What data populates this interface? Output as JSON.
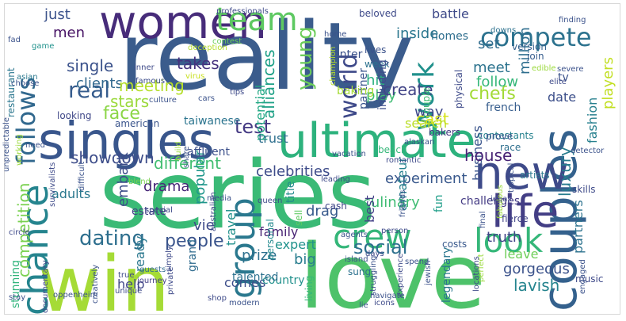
{
  "word_cloud": {
    "background": "#ffffff",
    "words": [
      {
        "text": "reality",
        "color": "#3b5c8c"
      },
      {
        "text": "series",
        "color": "#3aba76"
      },
      {
        "text": "love",
        "color": "#4ec26a"
      },
      {
        "text": "win",
        "color": "#a5db36"
      },
      {
        "text": "singles",
        "color": "#39568c"
      },
      {
        "text": "ultimate",
        "color": "#2db27d"
      },
      {
        "text": "women",
        "color": "#472c7a"
      },
      {
        "text": "couples",
        "color": "#34618d"
      },
      {
        "text": "new",
        "color": "#3e4a89"
      },
      {
        "text": "chance",
        "color": "#25848e"
      },
      {
        "text": "group",
        "color": "#2a788e"
      },
      {
        "text": "crew",
        "color": "#34b679"
      },
      {
        "text": "life",
        "color": "#433e85"
      },
      {
        "text": "look",
        "color": "#35b779"
      },
      {
        "text": "follows",
        "color": "#31688e"
      },
      {
        "text": "compete",
        "color": "#2c728e"
      },
      {
        "text": "team",
        "color": "#5ec962"
      },
      {
        "text": "work",
        "color": "#21918c"
      },
      {
        "text": "world",
        "color": "#3e4989"
      },
      {
        "text": "dating",
        "color": "#2e6f8e"
      },
      {
        "text": "people",
        "color": "#3a548c"
      },
      {
        "text": "real",
        "color": "#365c8d"
      },
      {
        "text": "social",
        "color": "#2d708e"
      },
      {
        "text": "young",
        "color": "#6ccd5a"
      },
      {
        "text": "competition",
        "color": "#7ad151"
      },
      {
        "text": "test",
        "color": "#443983"
      },
      {
        "text": "chefs",
        "color": "#a2da37"
      },
      {
        "text": "single",
        "color": "#3b528b"
      },
      {
        "text": "clients",
        "color": "#31688e"
      },
      {
        "text": "face",
        "color": "#8bd646"
      },
      {
        "text": "stars",
        "color": "#9bd93c"
      },
      {
        "text": "meeting",
        "color": "#b5de2b"
      },
      {
        "text": "takes",
        "color": "#46327e"
      },
      {
        "text": "just",
        "color": "#3b528b"
      },
      {
        "text": "men",
        "color": "#471365"
      },
      {
        "text": "inside",
        "color": "#2a768e"
      },
      {
        "text": "alliances",
        "color": "#1fa187"
      },
      {
        "text": "potential",
        "color": "#22a884"
      },
      {
        "text": "hit",
        "color": "#29af7f"
      },
      {
        "text": "play",
        "color": "#3fbc73"
      },
      {
        "text": "create",
        "color": "#414487"
      },
      {
        "text": "way",
        "color": "#3f4889"
      },
      {
        "text": "meet",
        "color": "#2c738e"
      },
      {
        "text": "set",
        "color": "#2f6c8e"
      },
      {
        "text": "follow",
        "color": "#35b779"
      },
      {
        "text": "million",
        "color": "#2e6e8e"
      },
      {
        "text": "players",
        "color": "#c2df23"
      },
      {
        "text": "fashion",
        "color": "#27808e"
      },
      {
        "text": "luxury",
        "color": "#287c8e"
      },
      {
        "text": "business",
        "color": "#3a548c"
      },
      {
        "text": "house",
        "color": "#482475"
      },
      {
        "text": "experiment",
        "color": "#38588c"
      },
      {
        "text": "drama",
        "color": "#482878"
      },
      {
        "text": "different",
        "color": "#42be71"
      },
      {
        "text": "showdown",
        "color": "#3d4d8a"
      },
      {
        "text": "embark",
        "color": "#3d4e8a"
      },
      {
        "text": "popular",
        "color": "#1f968b"
      },
      {
        "text": "travel",
        "color": "#21918c"
      },
      {
        "text": "trust",
        "color": "#2e6f8e"
      },
      {
        "text": "celebrities",
        "color": "#3e4c8a"
      },
      {
        "text": "culinary",
        "color": "#3fbc73"
      },
      {
        "text": "drag",
        "color": "#375a8c"
      },
      {
        "text": "best",
        "color": "#424086"
      },
      {
        "text": "amateur",
        "color": "#27808e"
      },
      {
        "text": "cast",
        "color": "#d5e21a"
      },
      {
        "text": "date",
        "color": "#3c4f8a"
      },
      {
        "text": "search",
        "color": "#bade28"
      },
      {
        "text": "partners",
        "color": "#2c728e"
      },
      {
        "text": "gorgeous",
        "color": "#3b528b"
      },
      {
        "text": "lavish",
        "color": "#25848e"
      },
      {
        "text": "leave",
        "color": "#6ece58"
      },
      {
        "text": "truth",
        "color": "#414487"
      },
      {
        "text": "prize",
        "color": "#2d708e"
      },
      {
        "text": "expert",
        "color": "#20928c"
      },
      {
        "text": "family",
        "color": "#482374"
      },
      {
        "text": "vie",
        "color": "#3e4a89"
      },
      {
        "text": "big",
        "color": "#287d8e"
      },
      {
        "text": "ready",
        "color": "#2a778e"
      },
      {
        "text": "comes",
        "color": "#3d4e8a"
      },
      {
        "text": "country",
        "color": "#21918c"
      },
      {
        "text": "help",
        "color": "#404688"
      },
      {
        "text": "grand",
        "color": "#2f6b8e"
      },
      {
        "text": "talented",
        "color": "#2c718e"
      },
      {
        "text": "challenges",
        "color": "#443b84"
      },
      {
        "text": "stunning",
        "color": "#30b47c"
      },
      {
        "text": "adults",
        "color": "#2a788e"
      },
      {
        "text": "personal",
        "color": "#23898e"
      },
      {
        "text": "title",
        "color": "#238a8d"
      },
      {
        "text": "american",
        "color": "#3a548c"
      },
      {
        "text": "taiwanese",
        "color": "#2b748e"
      },
      {
        "text": "french",
        "color": "#365d8d"
      },
      {
        "text": "contestants",
        "color": "#26828e"
      },
      {
        "text": "battle",
        "color": "#3e4989"
      },
      {
        "text": "homes",
        "color": "#2e6e8e"
      },
      {
        "text": "lives",
        "color": "#3b528b"
      },
      {
        "text": "partner",
        "color": "#3a548c"
      },
      {
        "text": "couple",
        "color": "#3fbc73"
      },
      {
        "text": "baking",
        "color": "#a5db36"
      },
      {
        "text": "week",
        "color": "#2c728e"
      },
      {
        "text": "including",
        "color": "#3d4d8a"
      },
      {
        "text": "skills",
        "color": "#3e4a89"
      },
      {
        "text": "fun",
        "color": "#1f9e89"
      },
      {
        "text": "estate",
        "color": "#424186"
      },
      {
        "text": "costs",
        "color": "#38588c"
      },
      {
        "text": "legendary",
        "color": "#2a768e"
      },
      {
        "text": "restaurant",
        "color": "#2a768e"
      },
      {
        "text": "tv",
        "color": "#3b528b"
      },
      {
        "text": "fierce",
        "color": "#414487"
      },
      {
        "text": "race",
        "color": "#2e6f8e"
      },
      {
        "text": "prove",
        "color": "#3a548c"
      },
      {
        "text": "artists",
        "color": "#2a788e"
      },
      {
        "text": "bakers",
        "color": "#443983"
      },
      {
        "text": "affluent",
        "color": "#3c508b"
      },
      {
        "text": "version",
        "color": "#35608d"
      },
      {
        "text": "join",
        "color": "#365d8d"
      },
      {
        "text": "enter",
        "color": "#3b528b"
      },
      {
        "text": "contest",
        "color": "#6ccd5a"
      },
      {
        "text": "famous",
        "color": "#3d4d8a"
      },
      {
        "text": "culture",
        "color": "#3b528b"
      },
      {
        "text": "looking",
        "color": "#3f4788"
      },
      {
        "text": "beach",
        "color": "#35b779"
      },
      {
        "text": "virus",
        "color": "#c8e020"
      },
      {
        "text": "blend",
        "color": "#7ad151"
      },
      {
        "text": "build",
        "color": "#9bd93c"
      },
      {
        "text": "sell",
        "color": "#5ec962"
      },
      {
        "text": "cash",
        "color": "#404688"
      },
      {
        "text": "guests",
        "color": "#31688e"
      },
      {
        "text": "journey",
        "color": "#423f85"
      },
      {
        "text": "living",
        "color": "#35b779"
      },
      {
        "text": "sung",
        "color": "#2c718e"
      },
      {
        "text": "music",
        "color": "#3e4989"
      },
      {
        "text": "physical",
        "color": "#3e4a89"
      },
      {
        "text": "beloved",
        "color": "#3e4a89"
      },
      {
        "text": "downs",
        "color": "#2c718e"
      },
      {
        "text": "home",
        "color": "#3b528b"
      },
      {
        "text": "asian",
        "color": "#2a788e"
      },
      {
        "text": "choose",
        "color": "#3b528b"
      },
      {
        "text": "need",
        "color": "#3b528b"
      },
      {
        "text": "game",
        "color": "#20928c"
      },
      {
        "text": "inner",
        "color": "#3e4a89"
      },
      {
        "text": "cars",
        "color": "#3b528b"
      },
      {
        "text": "tips",
        "color": "#3e4a89"
      },
      {
        "text": "media",
        "color": "#3b528b"
      },
      {
        "text": "queen",
        "color": "#3e4a89"
      },
      {
        "text": "special",
        "color": "#3e4a89"
      },
      {
        "text": "circle",
        "color": "#3e4a89"
      },
      {
        "text": "share",
        "color": "#3b528b"
      },
      {
        "text": "person",
        "color": "#3e4a89"
      },
      {
        "text": "island",
        "color": "#3b528b"
      },
      {
        "text": "jewish",
        "color": "#3b528b"
      },
      {
        "text": "unique",
        "color": "#3e4a89"
      },
      {
        "text": "stay",
        "color": "#3b528b"
      },
      {
        "text": "shop",
        "color": "#3e4a89"
      },
      {
        "text": "navigate",
        "color": "#3b528b"
      },
      {
        "text": "modern",
        "color": "#3b528b"
      },
      {
        "text": "private",
        "color": "#3e4a89"
      },
      {
        "text": "simply",
        "color": "#3e4a89"
      },
      {
        "text": "true",
        "color": "#3e4a89"
      },
      {
        "text": "spend",
        "color": "#3b528b"
      },
      {
        "text": "days",
        "color": "#3e4a89"
      },
      {
        "text": "friends",
        "color": "#3b528b"
      },
      {
        "text": "tropical",
        "color": "#3b528b"
      },
      {
        "text": "ideas",
        "color": "#3e4a89"
      },
      {
        "text": "final",
        "color": "#3b528b"
      },
      {
        "text": "perfect",
        "color": "#9bd93c"
      },
      {
        "text": "locations",
        "color": "#3e4a89"
      },
      {
        "text": "struggling",
        "color": "#3b528b"
      },
      {
        "text": "lie",
        "color": "#3b528b"
      },
      {
        "text": "icons",
        "color": "#3e4a89"
      },
      {
        "text": "experience",
        "color": "#3e4a89"
      },
      {
        "text": "fabulous",
        "color": "#9bd93c"
      },
      {
        "text": "agents",
        "color": "#3b528b"
      },
      {
        "text": "romantic",
        "color": "#3e4a89"
      },
      {
        "text": "vacation",
        "color": "#3b528b"
      },
      {
        "text": "professionals",
        "color": "#3e4a89"
      },
      {
        "text": "deception",
        "color": "#b5de2b"
      },
      {
        "text": "champion",
        "color": "#b5de2b"
      },
      {
        "text": "unpredictable",
        "color": "#3b528b"
      },
      {
        "text": "survivalists",
        "color": "#3e4a89"
      },
      {
        "text": "difficult",
        "color": "#3b528b"
      },
      {
        "text": "documentary",
        "color": "#3e4a89"
      },
      {
        "text": "creatively",
        "color": "#3b528b"
      },
      {
        "text": "oppenheim",
        "color": "#3b528b"
      },
      {
        "text": "australian",
        "color": "#3e4a89"
      },
      {
        "text": "alaskan",
        "color": "#3b528b"
      },
      {
        "text": "edible",
        "color": "#9bd93c"
      },
      {
        "text": "elite",
        "color": "#3e4a89"
      },
      {
        "text": "severe",
        "color": "#3b528b"
      },
      {
        "text": "finding",
        "color": "#3b528b"
      },
      {
        "text": "detector",
        "color": "#3b528b"
      },
      {
        "text": "working",
        "color": "#9bd93c"
      },
      {
        "text": "leading",
        "color": "#3e4a89"
      },
      {
        "text": "fad",
        "color": "#3b528b"
      },
      {
        "text": "engaged",
        "color": "#3b528b"
      }
    ]
  }
}
